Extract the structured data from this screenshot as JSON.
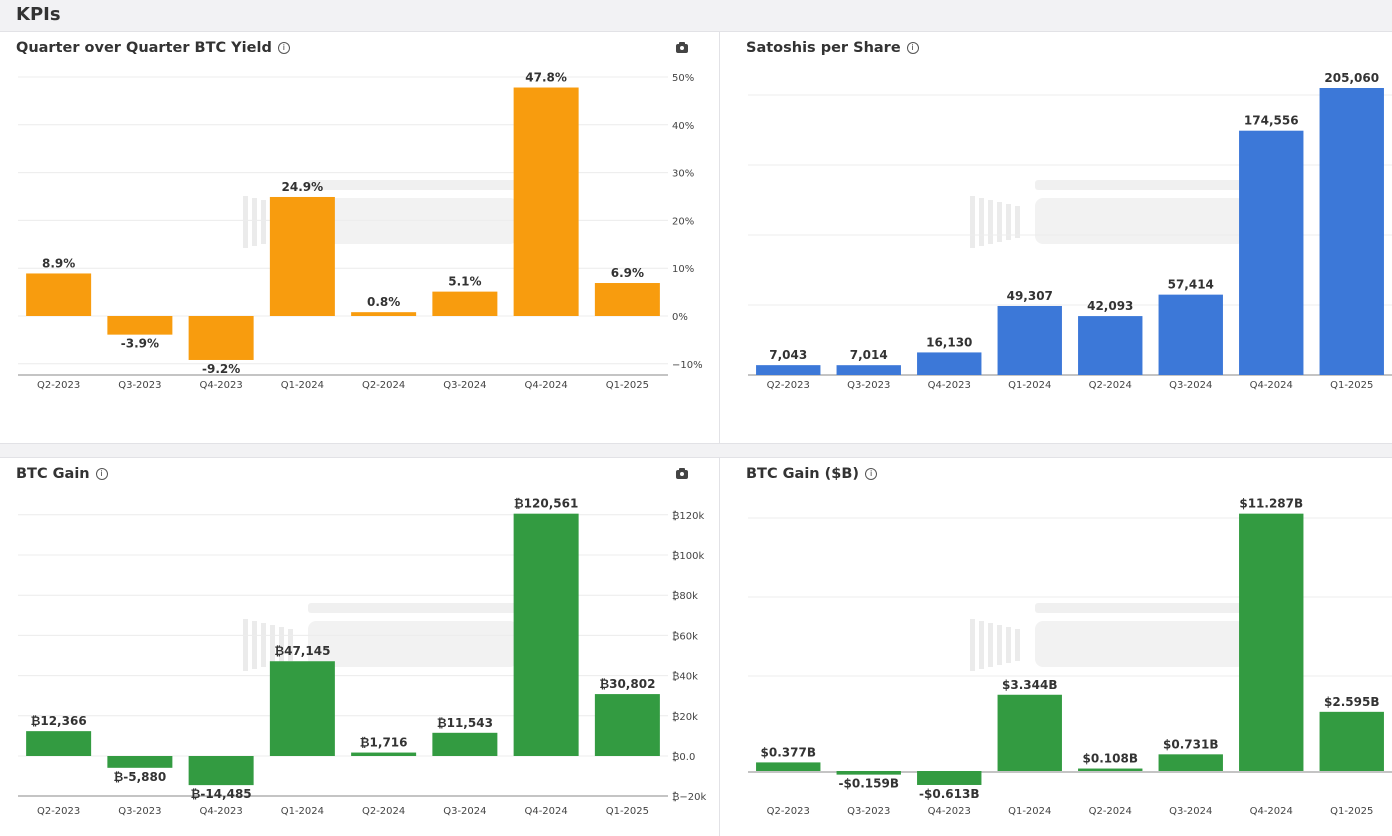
{
  "header": {
    "title": "KPIs"
  },
  "chart_data": [
    {
      "type": "bar",
      "title": "Quarter over Quarter BTC Yield",
      "categories": [
        "Q2-2023",
        "Q3-2023",
        "Q4-2023",
        "Q1-2024",
        "Q2-2024",
        "Q3-2024",
        "Q4-2024",
        "Q1-2025"
      ],
      "values": [
        8.9,
        -3.9,
        -9.2,
        24.9,
        0.8,
        5.1,
        47.8,
        6.9
      ],
      "data_labels": [
        "8.9%",
        "-3.9%",
        "-9.2%",
        "24.9%",
        "0.8%",
        "5.1%",
        "47.8%",
        "6.9%"
      ],
      "yticks": [
        "−10%",
        "0%",
        "10%",
        "20%",
        "30%",
        "40%",
        "50%"
      ],
      "ylim": [
        -10,
        50
      ],
      "yaxis_position": "right",
      "color": "#f89c0e",
      "grid": true,
      "has_camera_button": true
    },
    {
      "type": "bar",
      "title": "Satoshis per Share",
      "categories": [
        "Q2-2023",
        "Q3-2023",
        "Q4-2023",
        "Q1-2024",
        "Q2-2024",
        "Q3-2024",
        "Q4-2024",
        "Q1-2025"
      ],
      "values": [
        7043,
        7014,
        16130,
        49307,
        42093,
        57414,
        174556,
        205060
      ],
      "data_labels": [
        "7,043",
        "7,014",
        "16,130",
        "49,307",
        "42,093",
        "57,414",
        "174,556",
        "205,060"
      ],
      "yticks": [],
      "color": "#3c78d8",
      "grid": true,
      "has_camera_button": false
    },
    {
      "type": "bar",
      "title": "BTC Gain",
      "categories": [
        "Q2-2023",
        "Q3-2023",
        "Q4-2023",
        "Q1-2024",
        "Q2-2024",
        "Q3-2024",
        "Q4-2024",
        "Q1-2025"
      ],
      "values": [
        12366,
        -5880,
        -14485,
        47145,
        1716,
        11543,
        120561,
        30802
      ],
      "data_labels": [
        "₿12,366",
        "₿-5,880",
        "₿-14,485",
        "₿47,145",
        "₿1,716",
        "₿11,543",
        "₿120,561",
        "₿30,802"
      ],
      "yticks": [
        "₿−20k",
        "₿0.0",
        "₿20k",
        "₿40k",
        "₿60k",
        "₿80k",
        "₿100k",
        "₿120k"
      ],
      "ylim": [
        -20000,
        120000
      ],
      "yaxis_position": "right",
      "color": "#339b41",
      "grid": true,
      "has_camera_button": true
    },
    {
      "type": "bar",
      "title": "BTC Gain ($B)",
      "categories": [
        "Q2-2023",
        "Q3-2023",
        "Q4-2023",
        "Q1-2024",
        "Q2-2024",
        "Q3-2024",
        "Q4-2024",
        "Q1-2025"
      ],
      "values": [
        0.377,
        -0.159,
        -0.613,
        3.344,
        0.108,
        0.731,
        11.287,
        2.595
      ],
      "data_labels": [
        "$0.377B",
        "-$0.159B",
        "-$0.613B",
        "$3.344B",
        "$0.108B",
        "$0.731B",
        "$11.287B",
        "$2.595B"
      ],
      "yticks": [],
      "color": "#339b41",
      "grid": true,
      "has_camera_button": false
    }
  ],
  "watermark": {
    "line1": "BITCOIN MAGAZINE",
    "line2": "PRO"
  },
  "icons": {
    "info": "info-circle-icon",
    "camera": "camera-icon"
  },
  "info_glyph": "i"
}
